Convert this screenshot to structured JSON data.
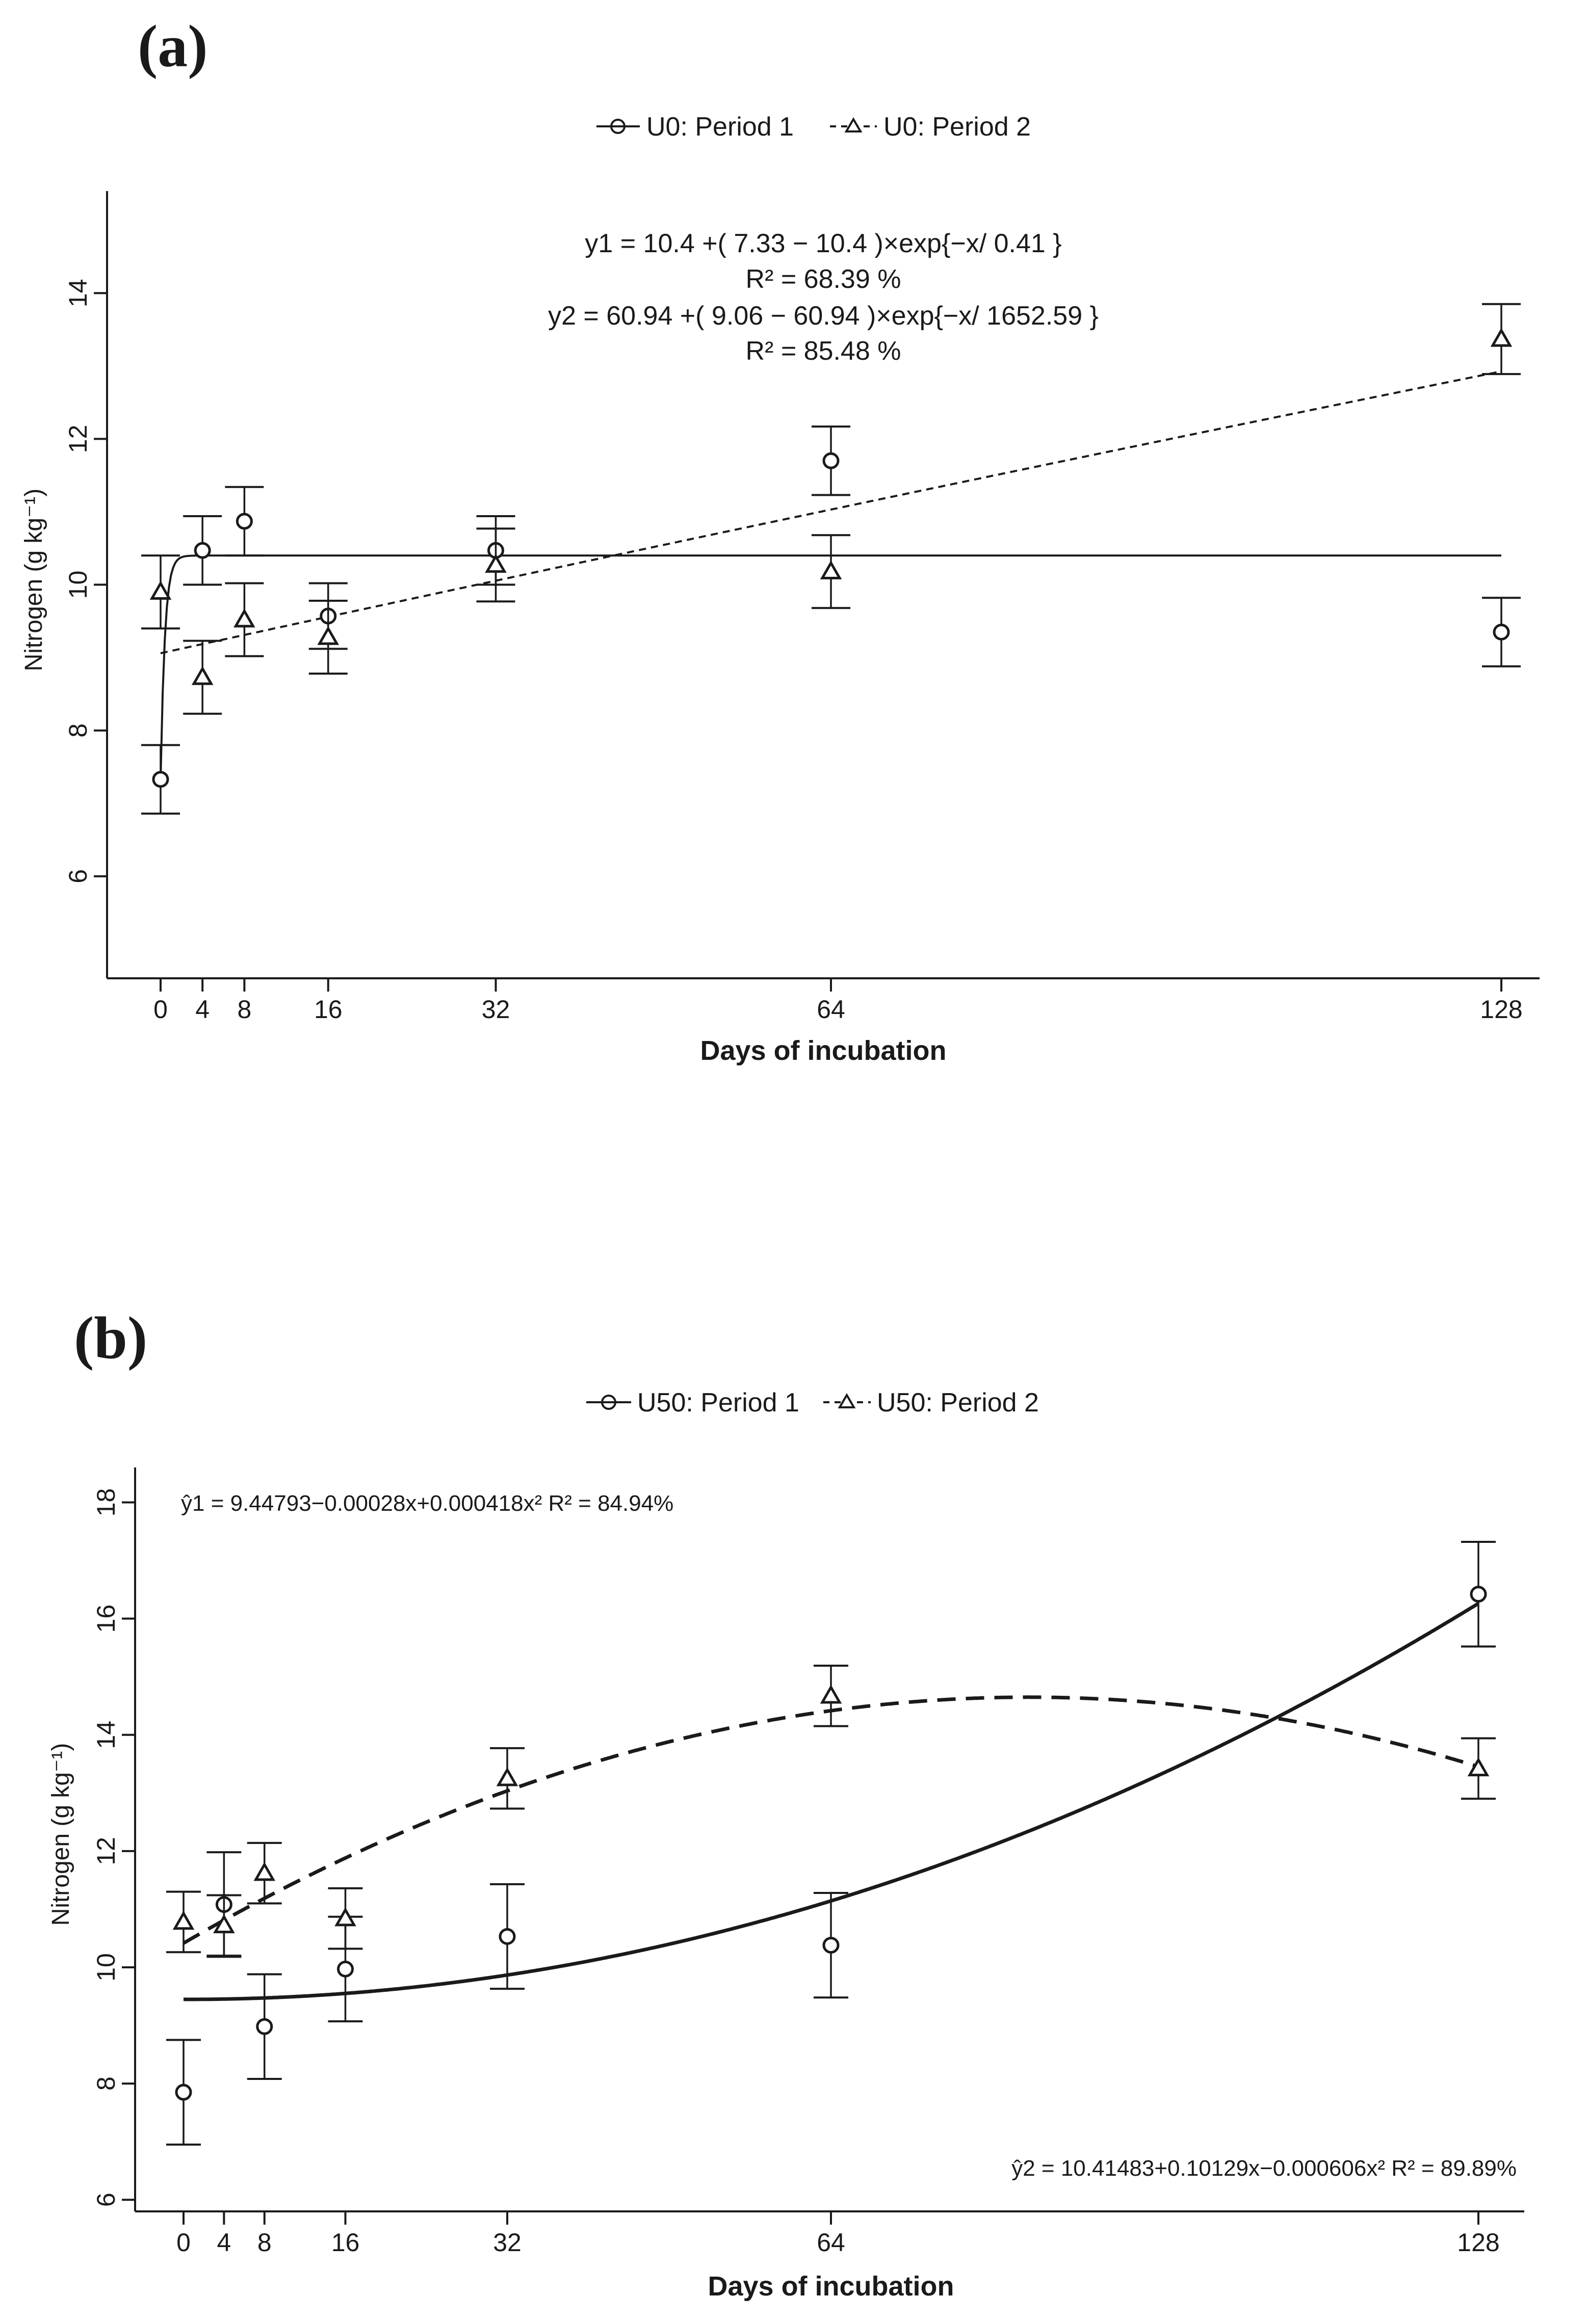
{
  "figure": {
    "panels": [
      {
        "label": "(a)",
        "legend": [
          {
            "name": "U0: Period 1",
            "marker": "circle",
            "dash": "solid"
          },
          {
            "name": "U0: Period 2",
            "marker": "triangle",
            "dash": "dashed"
          }
        ],
        "equations": [
          {
            "text": "y1 = 10.4 +( 7.33 − 10.4 )×exp{−x/ 0.41 }"
          },
          {
            "text": "R² = 68.39 %"
          },
          {
            "text": "y2 = 60.94 +( 9.06 − 60.94 )×exp{−x/ 1652.59 }"
          },
          {
            "text": "R² = 85.48 %"
          }
        ]
      },
      {
        "label": "(b)",
        "legend": [
          {
            "name": "U50: Period 1",
            "marker": "circle",
            "dash": "solid"
          },
          {
            "name": "U50: Period 2",
            "marker": "triangle",
            "dash": "dashed"
          }
        ],
        "equations": [
          {
            "text": "ŷ1 = 9.44793−0.00028x+0.000418x²  R² = 84.94%"
          },
          {
            "text": "ŷ2 = 10.41483+0.10129x−0.000606x²  R² = 89.89%"
          }
        ]
      }
    ]
  },
  "chart_data": [
    {
      "type": "scatter",
      "title": "(a)",
      "xlabel": "Days of incubation",
      "ylabel": "Nitrogen (g kg⁻¹)",
      "x_ticks": [
        0,
        4,
        8,
        16,
        32,
        64,
        128
      ],
      "y_ticks": [
        6,
        8,
        10,
        12,
        14
      ],
      "xlim": [
        -5,
        133
      ],
      "ylim": [
        4.6,
        15.4
      ],
      "grid": false,
      "legend_position": "top-center",
      "series": [
        {
          "name": "U0: Period 1",
          "marker": "circle",
          "x": [
            0,
            4,
            8,
            16,
            32,
            64,
            128
          ],
          "y": [
            7.33,
            10.47,
            10.87,
            9.57,
            10.47,
            11.7,
            9.35
          ],
          "err": [
            0.47,
            0.47,
            0.47,
            0.45,
            0.47,
            0.47,
            0.47
          ],
          "fit": {
            "kind": "exp",
            "a": 10.4,
            "b": 7.33,
            "c": 0.41,
            "dash": "solid"
          }
        },
        {
          "name": "U0: Period 2",
          "marker": "triangle",
          "x": [
            0,
            4,
            8,
            16,
            32,
            64,
            128
          ],
          "y": [
            9.9,
            8.73,
            9.52,
            9.28,
            10.27,
            10.18,
            13.37
          ],
          "err": [
            0.5,
            0.5,
            0.5,
            0.5,
            0.5,
            0.5,
            0.48
          ],
          "fit": {
            "kind": "exp",
            "a": 60.94,
            "b": 9.06,
            "c": 1652.59,
            "dash": "dashed"
          }
        }
      ]
    },
    {
      "type": "scatter",
      "title": "(b)",
      "xlabel": "Days of incubation",
      "ylabel": "Nitrogen (g kg⁻¹)",
      "x_ticks": [
        0,
        4,
        8,
        16,
        32,
        64,
        128
      ],
      "y_ticks": [
        6,
        8,
        10,
        12,
        14,
        16,
        18
      ],
      "xlim": [
        -5,
        133
      ],
      "ylim": [
        5.8,
        18.6
      ],
      "grid": false,
      "legend_position": "top-center",
      "series": [
        {
          "name": "U50: Period 1",
          "marker": "circle",
          "x": [
            0,
            4,
            8,
            16,
            32,
            64,
            128
          ],
          "y": [
            7.85,
            11.08,
            8.98,
            9.97,
            10.53,
            10.38,
            16.42
          ],
          "err": [
            0.9,
            0.9,
            0.9,
            0.9,
            0.9,
            0.9,
            0.9
          ],
          "fit": {
            "kind": "poly",
            "c0": 9.44793,
            "c1": -0.00028,
            "c2": 0.000418,
            "dash": "solid"
          }
        },
        {
          "name": "U50: Period 2",
          "marker": "triangle",
          "x": [
            0,
            4,
            8,
            16,
            32,
            64,
            128
          ],
          "y": [
            10.78,
            10.72,
            11.62,
            10.84,
            13.25,
            14.67,
            13.42
          ],
          "err": [
            0.52,
            0.52,
            0.52,
            0.52,
            0.52,
            0.52,
            0.52
          ],
          "fit": {
            "kind": "poly",
            "c0": 10.41483,
            "c1": 0.10129,
            "c2": -0.000606,
            "dash": "dashed"
          }
        }
      ]
    }
  ]
}
